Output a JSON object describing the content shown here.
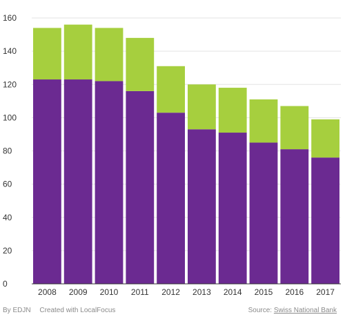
{
  "chart_data": {
    "type": "bar",
    "stacked": true,
    "categories": [
      "2008",
      "2009",
      "2010",
      "2011",
      "2012",
      "2013",
      "2014",
      "2015",
      "2016",
      "2017"
    ],
    "series": [
      {
        "color": "#6b2a91",
        "values": [
          123,
          123,
          122,
          116,
          103,
          93,
          91,
          85,
          81,
          76
        ]
      },
      {
        "color": "#a6cf3e",
        "values": [
          31,
          33,
          32,
          32,
          28,
          27,
          27,
          26,
          26,
          23
        ]
      }
    ],
    "yticks": [
      0,
      20,
      40,
      60,
      80,
      100,
      120,
      140,
      160
    ],
    "ylim": [
      0,
      160
    ],
    "grid": true,
    "legend": "none",
    "title": "",
    "xlabel": "",
    "ylabel": ""
  },
  "footer": {
    "byline": "By EDJN",
    "created_with": "Created with LocalFocus",
    "source_prefix": "Source:",
    "source_link": "Swiss National Bank"
  }
}
